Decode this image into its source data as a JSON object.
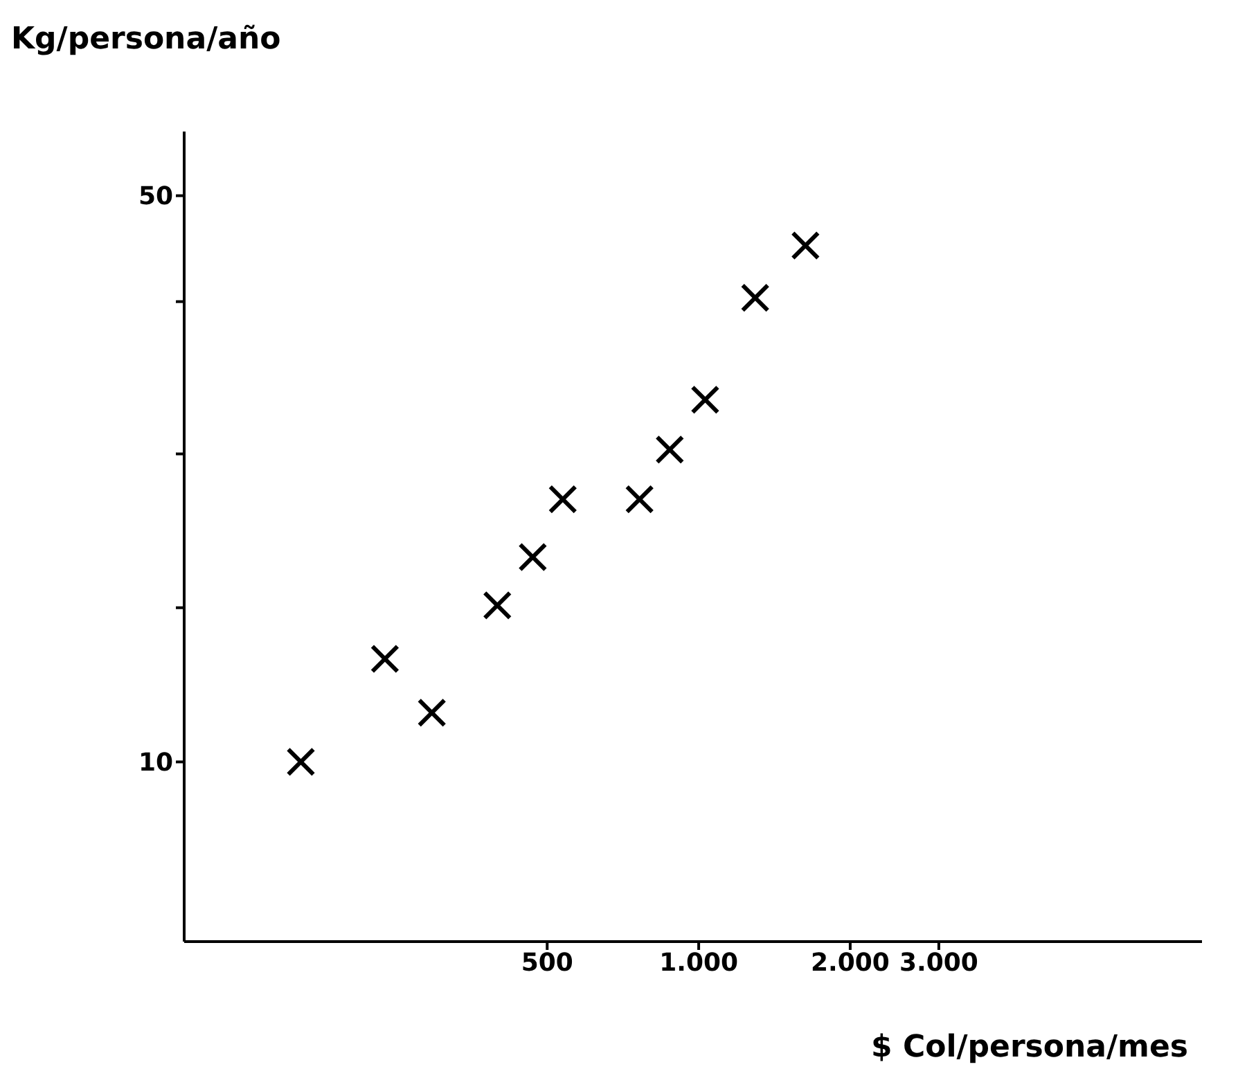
{
  "chart_data": {
    "type": "scatter",
    "xlabel": "$ Col/persona/mes",
    "ylabel": "Kg/persona/año",
    "x": [
      162,
      238,
      295,
      398,
      468,
      537,
      763,
      876,
      1030,
      1295,
      1630
    ],
    "values": [
      10,
      13.4,
      11.5,
      15.6,
      17.9,
      21.1,
      21.1,
      24.3,
      28,
      37.4,
      43.4
    ],
    "color": "#000000",
    "marker": "cross",
    "log": "xy",
    "grid": false,
    "legend": false,
    "xlim": [
      95,
      10000
    ],
    "ylim": [
      6,
      60
    ],
    "xticks": [
      500,
      {
        "value": 1000,
        "label": "1.000"
      },
      {
        "value": 2000,
        "label": "2.000"
      },
      {
        "value": 3000,
        "label": "3.000"
      }
    ],
    "yticks": [
      10,
      {
        "value": 15.5,
        "label": null
      },
      {
        "value": 24,
        "label": null
      },
      {
        "value": 37,
        "label": null
      },
      50
    ]
  }
}
